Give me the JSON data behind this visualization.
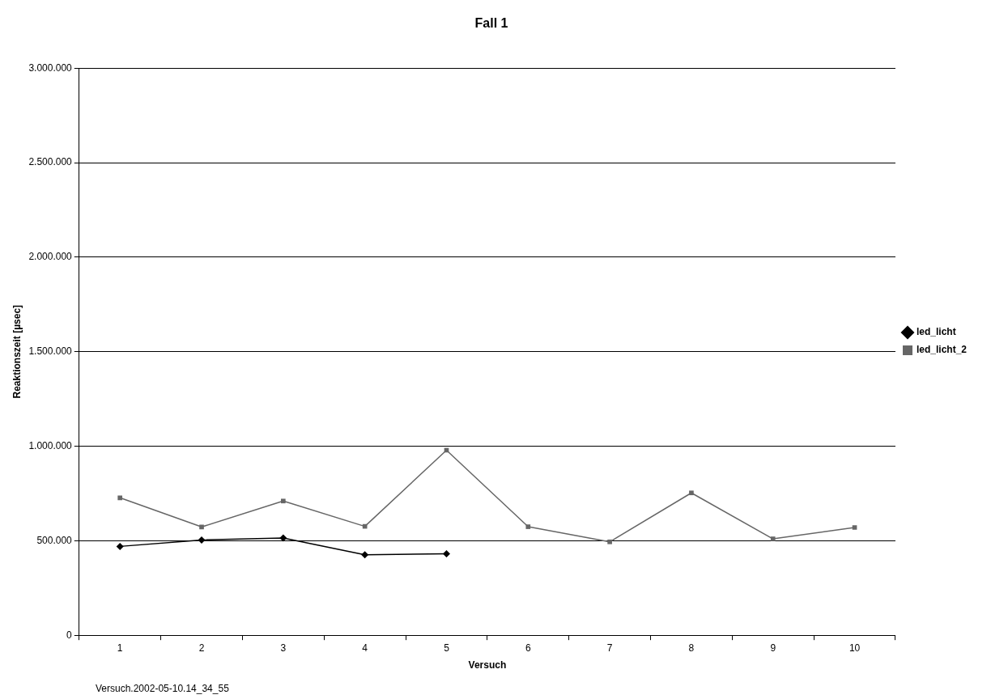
{
  "chart_data": {
    "type": "line",
    "title": "Fall 1",
    "xlabel": "Versuch",
    "ylabel": "Reaktionszeit [µsec]",
    "categories": [
      "1",
      "2",
      "3",
      "4",
      "5",
      "6",
      "7",
      "8",
      "9",
      "10"
    ],
    "series": [
      {
        "name": "led_licht",
        "color": "#000000",
        "marker": "diamond",
        "values": [
          470000,
          504000,
          514000,
          426000,
          431000,
          null,
          null,
          null,
          null,
          null
        ]
      },
      {
        "name": "led_licht_2",
        "color": "#666666",
        "marker": "square",
        "values": [
          727000,
          573000,
          710000,
          576000,
          979000,
          574000,
          494000,
          753000,
          510000,
          570000
        ]
      }
    ],
    "ylim": [
      0,
      3000000
    ],
    "yticks": [
      0,
      {
        "value": 500000,
        "label": "500.000"
      },
      {
        "value": 1000000,
        "label": "1.000.000"
      },
      {
        "value": 1500000,
        "label": "1.500.000"
      },
      {
        "value": 2000000,
        "label": "2.000.000"
      },
      {
        "value": 2500000,
        "label": "2.500.000"
      },
      {
        "value": 3000000,
        "label": "3.000.000"
      }
    ],
    "grid": "y",
    "legend": "right",
    "line_style": "solid",
    "annotations": [
      "Versuch.2002-05-10.14_34_55"
    ]
  }
}
